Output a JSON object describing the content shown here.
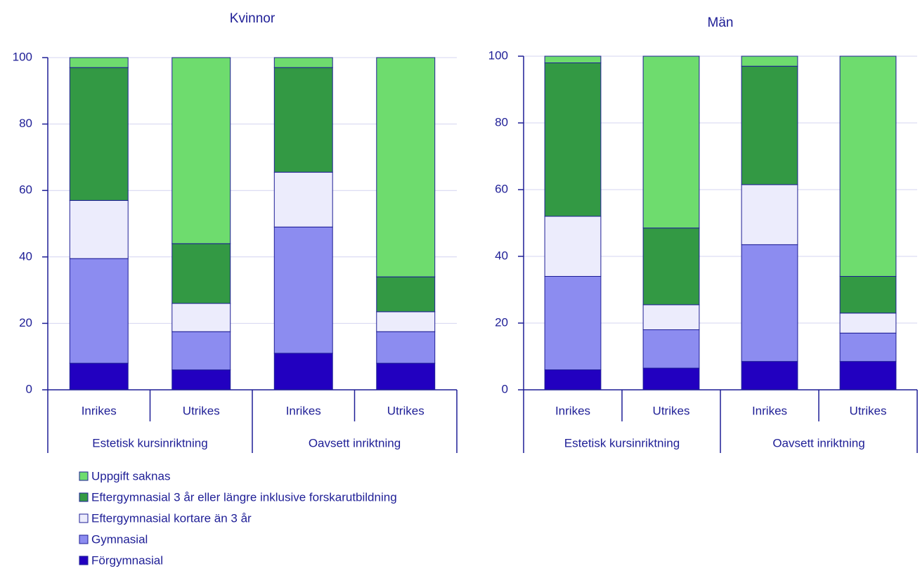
{
  "chart_data": [
    {
      "type": "stacked_bar",
      "title": "Kvinnor",
      "categories": [
        "Inrikes",
        "Utrikes",
        "Inrikes",
        "Utrikes"
      ],
      "groups": [
        "Estetisk kursinriktning",
        "Oavsett inriktning"
      ],
      "ylim": [
        0,
        100
      ],
      "yticks": [
        0,
        20,
        40,
        60,
        80,
        100
      ],
      "grid": true,
      "series": [
        {
          "name": "Förgymnasial",
          "color": "#2200c0",
          "values": [
            8,
            6,
            11,
            8
          ]
        },
        {
          "name": "Gymnasial",
          "color": "#8c8cf0",
          "values": [
            31.5,
            11.5,
            38,
            9.5
          ]
        },
        {
          "name": "Eftergymnasial kortare än 3 år",
          "color": "#ececfc",
          "values": [
            17.5,
            8.5,
            16.5,
            6
          ]
        },
        {
          "name": "Eftergymnasial 3 år eller längre inklusive forskarutbildning",
          "color": "#339944",
          "values": [
            40,
            18,
            31.5,
            10.5
          ]
        },
        {
          "name": "Uppgift saknas",
          "color": "#6edc6e",
          "values": [
            3,
            56,
            3,
            66
          ]
        }
      ]
    },
    {
      "type": "stacked_bar",
      "title": "Män",
      "categories": [
        "Inrikes",
        "Utrikes",
        "Inrikes",
        "Utrikes"
      ],
      "groups": [
        "Estetisk kursinriktning",
        "Oavsett inriktning"
      ],
      "ylim": [
        0,
        100
      ],
      "yticks": [
        0,
        20,
        40,
        60,
        80,
        100
      ],
      "grid": true,
      "series": [
        {
          "values": [
            6,
            6.5,
            8.5,
            8.5
          ]
        },
        {
          "values": [
            28,
            11.5,
            35,
            8.5
          ]
        },
        {
          "values": [
            18,
            7.5,
            18,
            6
          ]
        },
        {
          "values": [
            46,
            23,
            35.5,
            11
          ]
        },
        {
          "values": [
            2,
            51.5,
            3,
            66
          ]
        }
      ]
    }
  ]
}
